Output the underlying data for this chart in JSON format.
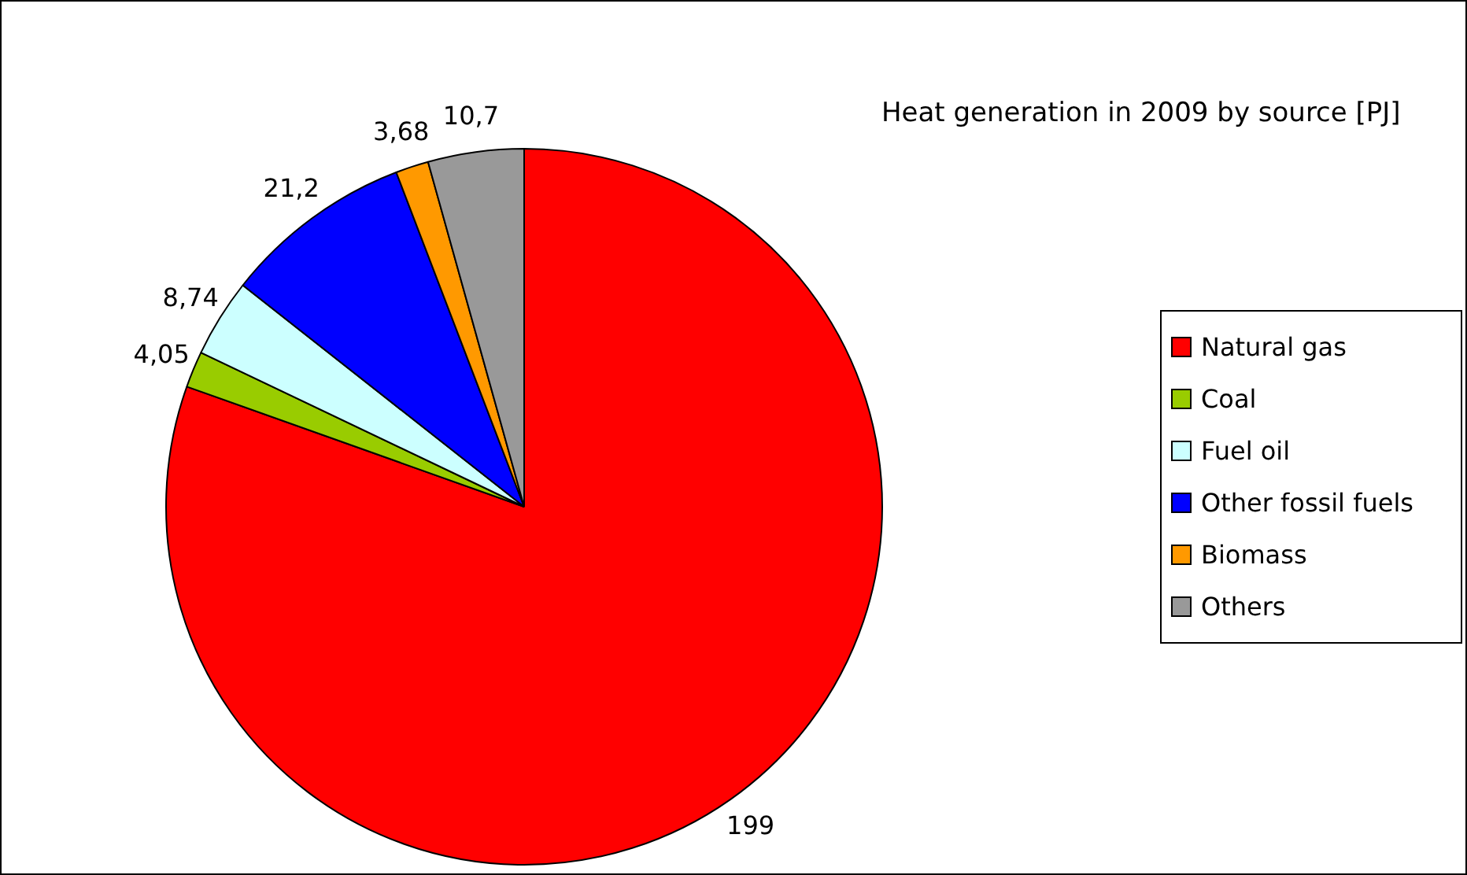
{
  "chart_data": {
    "type": "pie",
    "title": "Heat generation in 2009 by source [PJ]",
    "categories": [
      "Natural gas",
      "Coal",
      "Fuel oil",
      "Other fossil fuels",
      "Biomass",
      "Others"
    ],
    "values": [
      199,
      4.05,
      8.74,
      21.2,
      3.68,
      10.7
    ],
    "colors": [
      "#ff0000",
      "#99cc00",
      "#ccffff",
      "#0000ff",
      "#ff9900",
      "#999999"
    ],
    "value_labels": [
      "199",
      "4,05",
      "8,74",
      "21,2",
      "3,68",
      "10,7"
    ],
    "legend": "right"
  }
}
